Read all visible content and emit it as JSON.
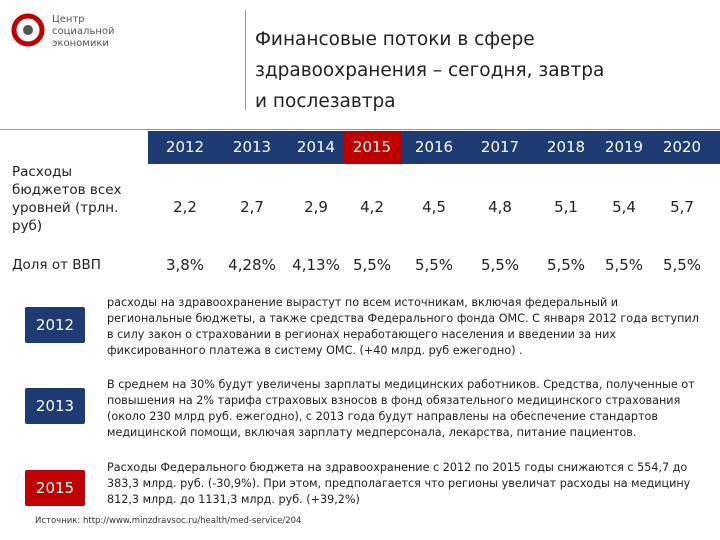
{
  "logo": {
    "lines": [
      "Центр",
      "социальной",
      "экономики"
    ]
  },
  "title": "Финансовые потоки в сфере здравоохранения – сегодня, завтра и послезавтра",
  "table": {
    "header": [
      "2012",
      "2013",
      "2014",
      "2015",
      "2016",
      "2017",
      "2018",
      "2019",
      "2020"
    ],
    "header_color": "#1f3b73",
    "highlight_column": 3,
    "highlight_color": "#c00000",
    "rows": [
      {
        "label": "Расходы бюджетов всех уровней (трлн. руб)",
        "cells": [
          "2,2",
          "2,7",
          "2,9",
          "4,2",
          "4,5",
          "4,8",
          "5,1",
          "5,4",
          "5,7"
        ]
      },
      {
        "label": "Доля от ВВП",
        "cells": [
          "3,8%",
          "4,28%",
          "4,13%",
          "5,5%",
          "5,5%",
          "5,5%",
          "5,5%",
          "5,5%",
          "5,5%"
        ]
      }
    ]
  },
  "notes": [
    {
      "year": "2012",
      "color": "#1f3b73",
      "text": "расходы на здравоохранение вырастут по всем источникам, включая федеральный и региональные бюджеты, а также средства Федерального фонда ОМС. С января 2012 года вступил в силу закон о страховании в регионах неработающего населения и введении за них фиксированного платежа в систему ОМС. (+40 млрд. руб ежегодно) ."
    },
    {
      "year": "2013",
      "color": "#1f3b73",
      "text": "В среднем на 30% будут увеличены зарплаты медицинских работников. Средства, полученные от повышения на 2% тарифа страховых взносов в фонд обязательного медицинского страхования (около 230 млрд руб. ежегодно), с 2013 года будут направлены на обеспечение стандартов медицинской помощи, включая зарплату медперсонала, лекарства, питание пациентов."
    },
    {
      "year": "2015",
      "color": "#c00000",
      "text": "Расходы Федерального бюджета на здравоохранение с 2012 по 2015 годы снижаются с 554,7 до 383,3 млрд. руб. (-30,9%). При этом, предполагается что регионы увеличат расходы на медицину 812,3 млрд. до 1131,3 млрд. руб. (+39,2%)"
    }
  ],
  "source": "Источник: http://www.minzdravsoc.ru/health/med-service/204"
}
